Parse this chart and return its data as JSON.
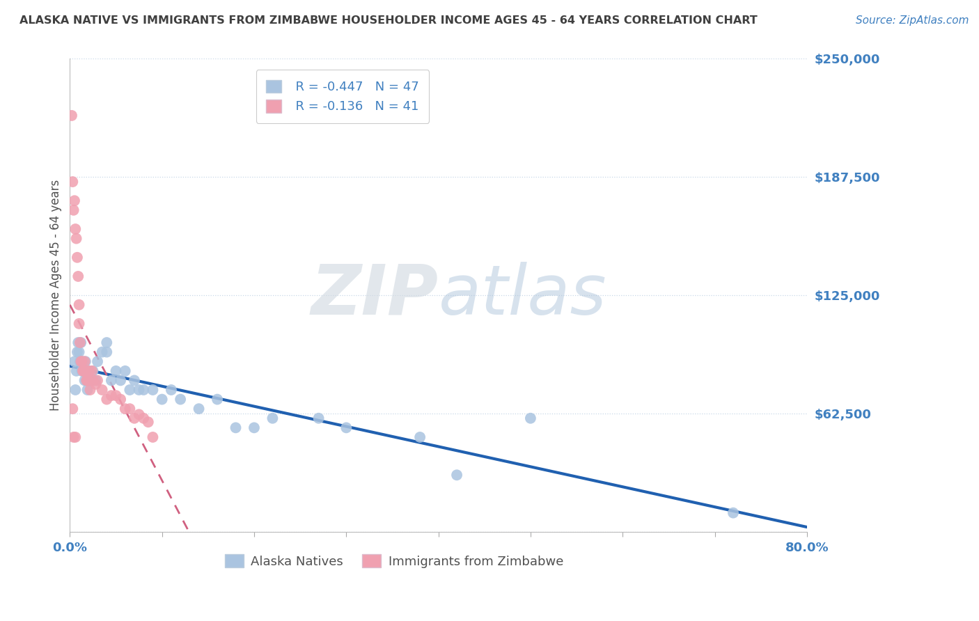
{
  "title": "ALASKA NATIVE VS IMMIGRANTS FROM ZIMBABWE HOUSEHOLDER INCOME AGES 45 - 64 YEARS CORRELATION CHART",
  "source": "Source: ZipAtlas.com",
  "ylabel": "Householder Income Ages 45 - 64 years",
  "watermark": "ZIPatlas",
  "xlim": [
    0.0,
    0.8
  ],
  "ylim": [
    0,
    250000
  ],
  "yticks": [
    0,
    62500,
    125000,
    187500,
    250000
  ],
  "ytick_labels": [
    "",
    "$62,500",
    "$125,000",
    "$187,500",
    "$250,000"
  ],
  "xticks": [
    0.0,
    0.1,
    0.2,
    0.3,
    0.4,
    0.5,
    0.6,
    0.7,
    0.8
  ],
  "alaska_R": -0.447,
  "alaska_N": 47,
  "zimbabwe_R": -0.136,
  "zimbabwe_N": 41,
  "alaska_color": "#aac4e0",
  "alaska_line_color": "#2060b0",
  "zimbabwe_color": "#f0a0b0",
  "zimbabwe_line_color": "#d06080",
  "background_color": "#ffffff",
  "grid_color": "#c8d8e8",
  "title_color": "#404040",
  "axis_label_color": "#505050",
  "tick_label_color": "#4080c0",
  "alaska_scatter_x": [
    0.005,
    0.006,
    0.007,
    0.008,
    0.009,
    0.01,
    0.011,
    0.012,
    0.013,
    0.014,
    0.015,
    0.016,
    0.017,
    0.018,
    0.019,
    0.02,
    0.021,
    0.022,
    0.025,
    0.028,
    0.03,
    0.035,
    0.04,
    0.04,
    0.045,
    0.05,
    0.055,
    0.06,
    0.065,
    0.07,
    0.075,
    0.08,
    0.09,
    0.1,
    0.11,
    0.12,
    0.14,
    0.16,
    0.18,
    0.2,
    0.22,
    0.27,
    0.3,
    0.38,
    0.42,
    0.5,
    0.72
  ],
  "alaska_scatter_y": [
    90000,
    75000,
    85000,
    95000,
    100000,
    95000,
    90000,
    100000,
    85000,
    90000,
    85000,
    80000,
    90000,
    80000,
    75000,
    85000,
    80000,
    80000,
    85000,
    80000,
    90000,
    95000,
    95000,
    100000,
    80000,
    85000,
    80000,
    85000,
    75000,
    80000,
    75000,
    75000,
    75000,
    70000,
    75000,
    70000,
    65000,
    70000,
    55000,
    55000,
    60000,
    60000,
    55000,
    50000,
    30000,
    60000,
    10000
  ],
  "zimbabwe_scatter_x": [
    0.002,
    0.003,
    0.004,
    0.005,
    0.006,
    0.007,
    0.008,
    0.009,
    0.01,
    0.01,
    0.011,
    0.012,
    0.013,
    0.014,
    0.015,
    0.016,
    0.017,
    0.018,
    0.019,
    0.02,
    0.021,
    0.022,
    0.024,
    0.025,
    0.028,
    0.03,
    0.035,
    0.04,
    0.045,
    0.05,
    0.055,
    0.06,
    0.065,
    0.07,
    0.075,
    0.08,
    0.085,
    0.09,
    0.003,
    0.004,
    0.006
  ],
  "zimbabwe_scatter_y": [
    220000,
    185000,
    170000,
    175000,
    160000,
    155000,
    145000,
    135000,
    120000,
    110000,
    100000,
    90000,
    90000,
    85000,
    85000,
    90000,
    85000,
    80000,
    80000,
    80000,
    85000,
    75000,
    85000,
    80000,
    78000,
    80000,
    75000,
    70000,
    72000,
    72000,
    70000,
    65000,
    65000,
    60000,
    62000,
    60000,
    58000,
    50000,
    65000,
    50000,
    50000
  ]
}
